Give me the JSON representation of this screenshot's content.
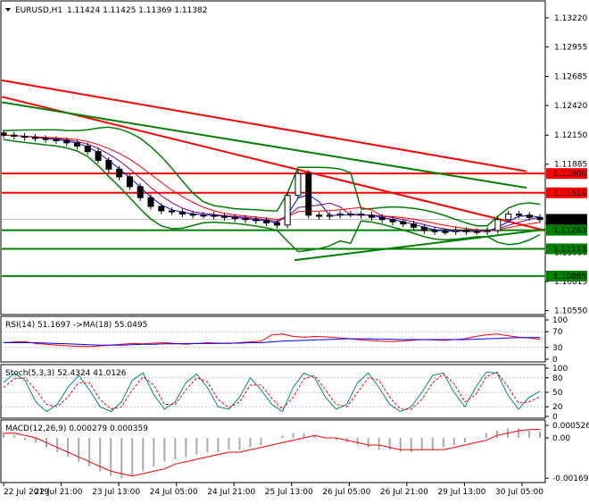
{
  "header": {
    "symbol": "EURUSD,H1",
    "ohlc": "1.11424 1.11425 1.11369 1.11382"
  },
  "colors": {
    "candle": "#000000",
    "bollinger": "#008000",
    "red_line": "#ff0000",
    "green_line": "#008000",
    "ma_blue": "#0000ff",
    "ma_red": "#ff0000",
    "ma_purple": "#800080",
    "price_tag_current": "#000000",
    "rsi_line": "#ff0000",
    "rsi_ma": "#0000ff",
    "stoch_main": "#008b8b",
    "stoch_signal": "#ff0000",
    "macd_hist": "#a9a9a9",
    "macd_signal": "#ff0000"
  },
  "chart_data": [
    {
      "type": "line",
      "panel": "price",
      "instrument": "EURUSD",
      "timeframe": "H1",
      "ylim": [
        1.1053,
        1.1335
      ],
      "price_axis_ticks": [
        "1.13220",
        "1.12955",
        "1.12685",
        "1.12420",
        "1.12150",
        "1.11885",
        "1.11615",
        "1.11345",
        "1.11080",
        "1.10815",
        "1.10550"
      ],
      "time_axis_labels": [
        "22 Jul 2019",
        "22 Jul 21:00",
        "23 Jul 13:00",
        "24 Jul 05:00",
        "24 Jul 21:00",
        "25 Jul 13:00",
        "26 Jul 05:00",
        "26 Jul 21:00",
        "29 Jul 13:00",
        "30 Jul 05:00"
      ],
      "horizontal_levels": [
        {
          "label": "1.11800",
          "value": 1.118,
          "color": "red"
        },
        {
          "label": "1.11624",
          "value": 1.11624,
          "color": "red"
        },
        {
          "label": "1.11283",
          "value": 1.11283,
          "color": "green"
        },
        {
          "label": "1.11113",
          "value": 1.11113,
          "color": "green"
        },
        {
          "label": "1.10865",
          "value": 1.10865,
          "color": "green"
        }
      ],
      "current_price": {
        "label": "1.11382",
        "value": 1.11382
      },
      "close_series": [
        1.1215,
        1.1214,
        1.1213,
        1.1212,
        1.1211,
        1.121,
        1.1208,
        1.1205,
        1.12,
        1.1192,
        1.1184,
        1.1177,
        1.1168,
        1.1158,
        1.115,
        1.1146,
        1.1145,
        1.1143,
        1.1142,
        1.1142,
        1.1141,
        1.114,
        1.1139,
        1.1138,
        1.1137,
        1.1135,
        1.1133,
        1.116,
        1.118,
        1.1142,
        1.1141,
        1.1142,
        1.1143,
        1.1143,
        1.1142,
        1.114,
        1.1138,
        1.1136,
        1.1134,
        1.1131,
        1.1128,
        1.1127,
        1.1127,
        1.1128,
        1.1127,
        1.1127,
        1.1128,
        1.1138,
        1.1143,
        1.1142,
        1.114,
        1.1138
      ]
    },
    {
      "type": "line",
      "panel": "rsi",
      "label": "RSI(14) 51.1697   ->MA(18) 55.0495",
      "ylim": [
        0,
        100
      ],
      "axis_ticks": [
        "100",
        "70",
        "30",
        "0"
      ],
      "series": [
        {
          "name": "RSI(14)",
          "values": [
            42,
            44,
            45,
            40,
            38,
            36,
            34,
            33,
            32,
            34,
            36,
            38,
            40,
            39,
            41,
            42,
            40,
            38,
            40,
            42,
            41,
            40,
            42,
            44,
            46,
            62,
            64,
            58,
            56,
            58,
            57,
            55,
            53,
            50,
            48,
            46,
            45,
            46,
            48,
            50,
            49,
            48,
            50,
            52,
            58,
            62,
            64,
            60,
            56,
            54,
            51
          ]
        },
        {
          "name": "MA(18)",
          "values": [
            42,
            42,
            42,
            42,
            41,
            40,
            39,
            38,
            37,
            36,
            36,
            36,
            37,
            38,
            38,
            39,
            39,
            40,
            40,
            40,
            40,
            41,
            41,
            42,
            42,
            44,
            46,
            47,
            48,
            49,
            50,
            51,
            52,
            52,
            52,
            51,
            51,
            50,
            50,
            50,
            50,
            50,
            50,
            50,
            51,
            52,
            53,
            54,
            55,
            55,
            55
          ]
        }
      ]
    },
    {
      "type": "line",
      "panel": "stochastic",
      "label": "Stoch(5,3,3) 52.4324 41.0126",
      "ylim": [
        0,
        100
      ],
      "axis_ticks": [
        "100",
        "80",
        "50",
        "20",
        "0"
      ],
      "series": [
        {
          "name": "Stoch %K",
          "values": [
            70,
            90,
            75,
            30,
            10,
            25,
            60,
            85,
            55,
            20,
            10,
            30,
            75,
            90,
            45,
            15,
            30,
            70,
            88,
            60,
            20,
            15,
            40,
            80,
            55,
            25,
            10,
            60,
            90,
            80,
            40,
            15,
            25,
            70,
            90,
            60,
            25,
            10,
            20,
            50,
            85,
            90,
            50,
            20,
            60,
            92,
            90,
            45,
            15,
            40,
            52
          ]
        },
        {
          "name": "Stoch %D",
          "values": [
            60,
            78,
            80,
            55,
            25,
            20,
            40,
            70,
            70,
            35,
            15,
            20,
            55,
            82,
            65,
            25,
            25,
            55,
            80,
            72,
            35,
            18,
            30,
            65,
            65,
            38,
            15,
            40,
            78,
            85,
            55,
            25,
            20,
            50,
            80,
            75,
            40,
            15,
            15,
            35,
            70,
            88,
            68,
            30,
            45,
            82,
            92,
            62,
            28,
            30,
            41
          ]
        }
      ]
    },
    {
      "type": "bar",
      "panel": "macd",
      "label": "MACD(12,26,9) 0.000279 0.000359",
      "axis_ticks": [
        "0.000526",
        "0.00",
        "-0.001694"
      ],
      "ylim": [
        -0.0018,
        0.0006
      ],
      "series": [
        {
          "name": "MACD",
          "values": [
            0.0002,
            0.0001,
            -0.0001,
            -0.0002,
            -0.0004,
            -0.0006,
            -0.0008,
            -0.001,
            -0.0012,
            -0.0014,
            -0.0016,
            -0.0017,
            -0.0016,
            -0.0014,
            -0.0012,
            -0.001,
            -0.0009,
            -0.0008,
            -0.0007,
            -0.0006,
            -0.0006,
            -0.0005,
            -0.0005,
            -0.0004,
            -0.0003,
            0.0,
            0.0001,
            0.0002,
            0.0002,
            0.0001,
            0.0,
            -0.0001,
            -0.0002,
            -0.0003,
            -0.0004,
            -0.0005,
            -0.0005,
            -0.0006,
            -0.0006,
            -0.0005,
            -0.0005,
            -0.0004,
            -0.0003,
            -0.0002,
            0.0,
            0.0002,
            0.0003,
            0.0004,
            0.0004,
            0.0003,
            0.00028
          ]
        },
        {
          "name": "Signal",
          "values": [
            0.0002,
            0.0002,
            0.0001,
            0.0,
            -0.0002,
            -0.0004,
            -0.0006,
            -0.0008,
            -0.001,
            -0.0012,
            -0.0014,
            -0.0015,
            -0.0016,
            -0.0015,
            -0.0014,
            -0.0013,
            -0.0011,
            -0.001,
            -0.0009,
            -0.0008,
            -0.0007,
            -0.0006,
            -0.0006,
            -0.0005,
            -0.0004,
            -0.0003,
            -0.0002,
            -0.0001,
            0.0,
            0.0001,
            0.0,
            0.0,
            -0.0001,
            -0.0002,
            -0.0003,
            -0.0003,
            -0.0004,
            -0.0005,
            -0.0005,
            -0.0005,
            -0.0005,
            -0.0005,
            -0.0004,
            -0.0003,
            -0.0002,
            -0.0001,
            0.0001,
            0.0002,
            0.0003,
            0.00035,
            0.00036
          ]
        }
      ]
    }
  ]
}
